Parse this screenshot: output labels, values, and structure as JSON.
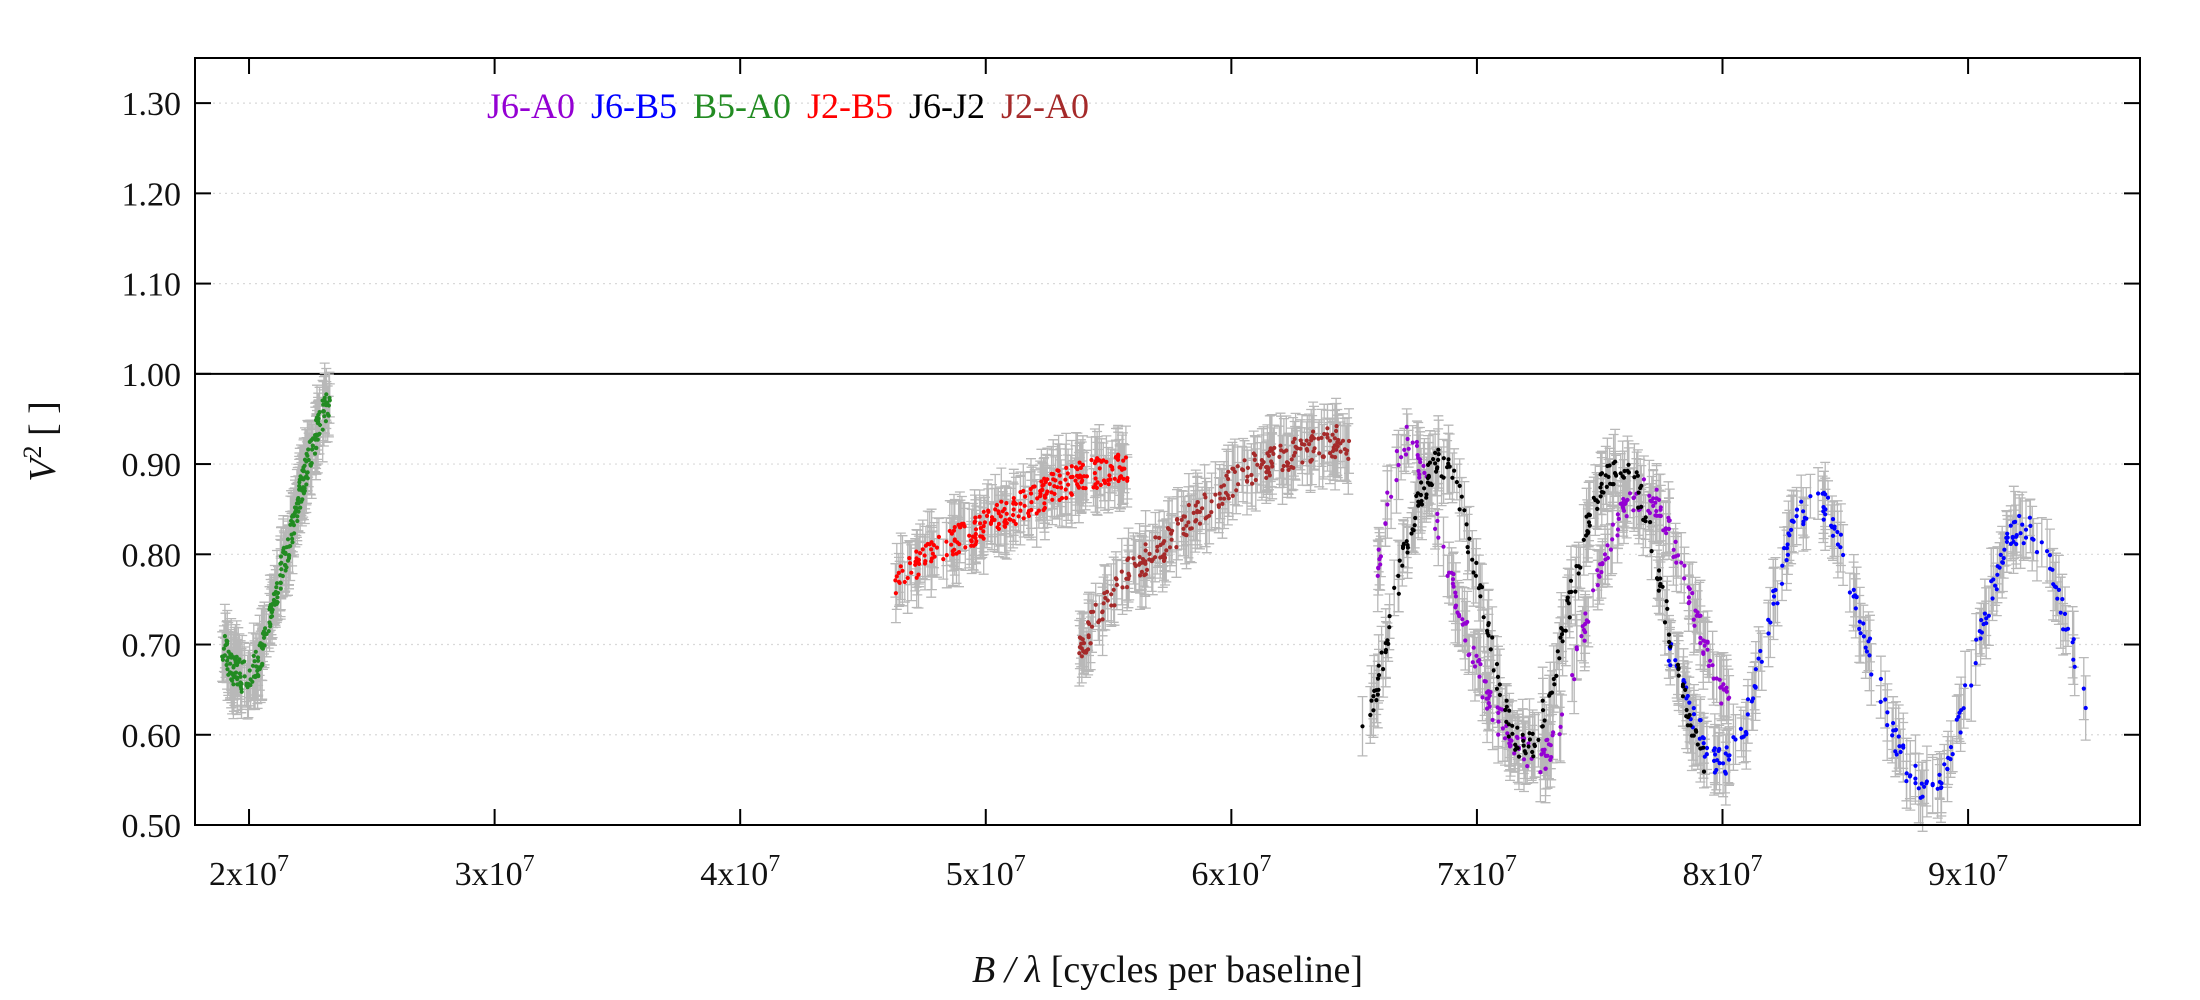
{
  "chart_data": {
    "type": "scatter",
    "xlabel_italic": "B / λ",
    "xlabel_rest": "[cycles per baseline]",
    "ylabel_italic": "V",
    "ylabel_sup": "2",
    "ylabel_rest": "[ ]",
    "xlim": [
      17800000,
      97000000
    ],
    "ylim": [
      0.5,
      1.35
    ],
    "x_ticks": [
      {
        "value": 20000000,
        "base": "2x10",
        "exp": "7"
      },
      {
        "value": 30000000,
        "base": "3x10",
        "exp": "7"
      },
      {
        "value": 40000000,
        "base": "4x10",
        "exp": "7"
      },
      {
        "value": 50000000,
        "base": "5x10",
        "exp": "7"
      },
      {
        "value": 60000000,
        "base": "6x10",
        "exp": "7"
      },
      {
        "value": 70000000,
        "base": "7x10",
        "exp": "7"
      },
      {
        "value": 80000000,
        "base": "8x10",
        "exp": "7"
      },
      {
        "value": 90000000,
        "base": "9x10",
        "exp": "7"
      }
    ],
    "y_ticks": [
      {
        "value": 0.5,
        "label": "0.50"
      },
      {
        "value": 0.6,
        "label": "0.60"
      },
      {
        "value": 0.7,
        "label": "0.70"
      },
      {
        "value": 0.8,
        "label": "0.80"
      },
      {
        "value": 0.9,
        "label": "0.90"
      },
      {
        "value": 1.0,
        "label": "1.00"
      },
      {
        "value": 1.1,
        "label": "1.10"
      },
      {
        "value": 1.2,
        "label": "1.20"
      },
      {
        "value": 1.3,
        "label": "1.30"
      }
    ],
    "reference_line": 1.0,
    "grid": "horizontal dotted",
    "legend_position": "top-left",
    "errorbar_color": "#b8b8b8",
    "series": [
      {
        "name": "J6-A0",
        "color": "#9400d3",
        "points": [
          [
            65900000,
            0.78
          ],
          [
            66400000,
            0.86
          ],
          [
            66900000,
            0.92
          ],
          [
            67300000,
            0.93
          ],
          [
            67800000,
            0.89
          ],
          [
            68300000,
            0.84
          ],
          [
            68800000,
            0.79
          ],
          [
            69300000,
            0.74
          ],
          [
            69800000,
            0.69
          ],
          [
            70300000,
            0.65
          ],
          [
            70800000,
            0.62
          ],
          [
            71300000,
            0.6
          ],
          [
            71800000,
            0.585
          ],
          [
            72300000,
            0.575
          ],
          [
            72800000,
            0.575
          ],
          [
            73300000,
            0.61
          ],
          [
            73800000,
            0.66
          ],
          [
            74300000,
            0.71
          ],
          [
            74800000,
            0.76
          ],
          [
            75300000,
            0.8
          ],
          [
            75800000,
            0.84
          ],
          [
            76300000,
            0.86
          ],
          [
            76800000,
            0.87
          ],
          [
            77300000,
            0.855
          ],
          [
            77800000,
            0.83
          ],
          [
            78300000,
            0.79
          ],
          [
            78800000,
            0.74
          ],
          [
            79300000,
            0.7
          ],
          [
            79800000,
            0.66
          ],
          [
            80300000,
            0.63
          ]
        ]
      },
      {
        "name": "J6-B5",
        "color": "#0000ff",
        "points": [
          [
            77800000,
            0.7
          ],
          [
            78300000,
            0.66
          ],
          [
            78800000,
            0.62
          ],
          [
            79300000,
            0.59
          ],
          [
            79800000,
            0.57
          ],
          [
            80300000,
            0.575
          ],
          [
            80800000,
            0.6
          ],
          [
            81300000,
            0.65
          ],
          [
            81800000,
            0.71
          ],
          [
            82300000,
            0.77
          ],
          [
            82800000,
            0.82
          ],
          [
            83300000,
            0.85
          ],
          [
            83800000,
            0.86
          ],
          [
            84300000,
            0.85
          ],
          [
            84800000,
            0.81
          ],
          [
            85300000,
            0.76
          ],
          [
            85800000,
            0.71
          ],
          [
            86300000,
            0.66
          ],
          [
            86800000,
            0.61
          ],
          [
            87300000,
            0.575
          ],
          [
            87800000,
            0.55
          ],
          [
            88300000,
            0.545
          ],
          [
            88800000,
            0.55
          ],
          [
            89300000,
            0.58
          ],
          [
            89800000,
            0.63
          ],
          [
            90300000,
            0.69
          ],
          [
            90800000,
            0.74
          ],
          [
            91300000,
            0.79
          ],
          [
            91800000,
            0.82
          ],
          [
            92300000,
            0.83
          ],
          [
            92800000,
            0.82
          ],
          [
            93300000,
            0.79
          ],
          [
            93800000,
            0.74
          ],
          [
            94300000,
            0.69
          ],
          [
            94800000,
            0.64
          ]
        ]
      },
      {
        "name": "B5-A0",
        "color": "#228b22",
        "points": [
          [
            18900000,
            0.7
          ],
          [
            19300000,
            0.675
          ],
          [
            19700000,
            0.665
          ],
          [
            20100000,
            0.665
          ],
          [
            20500000,
            0.69
          ],
          [
            20900000,
            0.73
          ],
          [
            21300000,
            0.78
          ],
          [
            21700000,
            0.82
          ],
          [
            22100000,
            0.87
          ],
          [
            22500000,
            0.91
          ],
          [
            22900000,
            0.95
          ],
          [
            23300000,
            0.97
          ]
        ]
      },
      {
        "name": "J2-B5",
        "color": "#ff0000",
        "points": [
          [
            46300000,
            0.765
          ],
          [
            46800000,
            0.78
          ],
          [
            47300000,
            0.79
          ],
          [
            47800000,
            0.8
          ],
          [
            48300000,
            0.805
          ],
          [
            48800000,
            0.815
          ],
          [
            49300000,
            0.82
          ],
          [
            49800000,
            0.83
          ],
          [
            50300000,
            0.835
          ],
          [
            50800000,
            0.845
          ],
          [
            51300000,
            0.85
          ],
          [
            51800000,
            0.86
          ],
          [
            52300000,
            0.865
          ],
          [
            52800000,
            0.875
          ],
          [
            53300000,
            0.88
          ],
          [
            53800000,
            0.885
          ],
          [
            54300000,
            0.89
          ],
          [
            54800000,
            0.89
          ],
          [
            55300000,
            0.895
          ],
          [
            55800000,
            0.895
          ]
        ]
      },
      {
        "name": "J6-J2",
        "color": "#000000",
        "points": [
          [
            65300000,
            0.6
          ],
          [
            65800000,
            0.64
          ],
          [
            66300000,
            0.7
          ],
          [
            66800000,
            0.77
          ],
          [
            67300000,
            0.83
          ],
          [
            67800000,
            0.87
          ],
          [
            68300000,
            0.9
          ],
          [
            68800000,
            0.895
          ],
          [
            69300000,
            0.86
          ],
          [
            69800000,
            0.8
          ],
          [
            70300000,
            0.74
          ],
          [
            70800000,
            0.67
          ],
          [
            71300000,
            0.61
          ],
          [
            71800000,
            0.585
          ],
          [
            72300000,
            0.59
          ],
          [
            72800000,
            0.63
          ],
          [
            73300000,
            0.69
          ],
          [
            73800000,
            0.75
          ],
          [
            74300000,
            0.81
          ],
          [
            74800000,
            0.86
          ],
          [
            75300000,
            0.89
          ],
          [
            75800000,
            0.9
          ],
          [
            76300000,
            0.89
          ],
          [
            76800000,
            0.85
          ],
          [
            77300000,
            0.79
          ],
          [
            77800000,
            0.72
          ],
          [
            78300000,
            0.66
          ],
          [
            78800000,
            0.6
          ],
          [
            79300000,
            0.57
          ]
        ]
      },
      {
        "name": "J2-A0",
        "color": "#a52a2a",
        "points": [
          [
            53800000,
            0.69
          ],
          [
            54300000,
            0.72
          ],
          [
            54800000,
            0.745
          ],
          [
            55300000,
            0.76
          ],
          [
            55800000,
            0.78
          ],
          [
            56300000,
            0.79
          ],
          [
            56800000,
            0.8
          ],
          [
            57300000,
            0.81
          ],
          [
            57800000,
            0.825
          ],
          [
            58300000,
            0.84
          ],
          [
            58800000,
            0.85
          ],
          [
            59300000,
            0.865
          ],
          [
            59800000,
            0.875
          ],
          [
            60300000,
            0.885
          ],
          [
            60800000,
            0.895
          ],
          [
            61300000,
            0.9
          ],
          [
            61800000,
            0.905
          ],
          [
            62300000,
            0.91
          ],
          [
            62800000,
            0.915
          ],
          [
            63300000,
            0.92
          ],
          [
            63800000,
            0.925
          ],
          [
            64300000,
            0.925
          ],
          [
            64800000,
            0.91
          ]
        ]
      }
    ]
  }
}
